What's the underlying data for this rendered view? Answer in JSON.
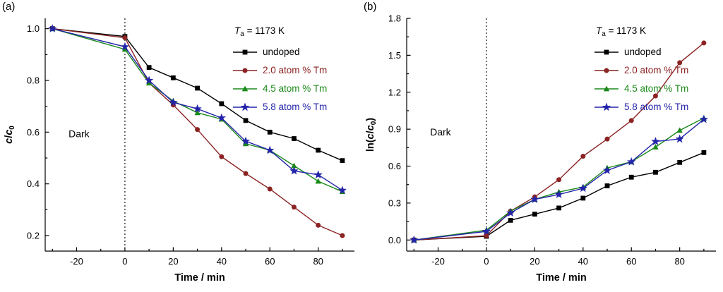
{
  "figure": {
    "panel_labels": [
      "(a)",
      "(b)"
    ]
  },
  "chart_data": [
    {
      "type": "line",
      "panel": "a",
      "xlabel": "Time / min",
      "ylabel_parts": [
        {
          "text": "c",
          "italic": true
        },
        {
          "text": "/",
          "italic": false
        },
        {
          "text": "c",
          "italic": true
        },
        {
          "text": "0",
          "sub": true
        }
      ],
      "annotation_parts": [
        {
          "text": "T",
          "italic": true
        },
        {
          "text": "a",
          "sub": true
        },
        {
          "text": " = 1173 K",
          "italic": false
        }
      ],
      "region_label": {
        "text": "Dark",
        "x": -19,
        "y": 0.58
      },
      "xlim": [
        -33,
        95
      ],
      "ylim": [
        0.14,
        1.04
      ],
      "xticks": [
        -20,
        0,
        20,
        40,
        60,
        80
      ],
      "xminor_ticks": [
        -30,
        -10,
        10,
        30,
        50,
        70,
        90
      ],
      "yticks": [
        0.2,
        0.4,
        0.6,
        0.8,
        1.0
      ],
      "yminor_ticks": [
        0.3,
        0.5,
        0.7,
        0.9
      ],
      "ytick_decimals": 1,
      "dashed_vline_x": 0,
      "grid": false,
      "legend_position": "top-right",
      "x": [
        -30,
        0,
        10,
        20,
        30,
        40,
        50,
        60,
        70,
        80,
        90
      ],
      "series": [
        {
          "name": "undoped",
          "marker": "square",
          "color": "#000000",
          "values": [
            1.0,
            0.97,
            0.85,
            0.81,
            0.77,
            0.71,
            0.645,
            0.6,
            0.575,
            0.53,
            0.49
          ]
        },
        {
          "name": "2.0 atom % Tm",
          "marker": "circle",
          "color": "#8b2323",
          "values": [
            1.0,
            0.965,
            0.79,
            0.705,
            0.61,
            0.505,
            0.44,
            0.38,
            0.31,
            0.24,
            0.2
          ]
        },
        {
          "name": "4.5 atom % Tm",
          "marker": "triangle",
          "color": "#1a8a1a",
          "values": [
            1.0,
            0.92,
            0.79,
            0.72,
            0.675,
            0.65,
            0.555,
            0.53,
            0.47,
            0.41,
            0.37
          ]
        },
        {
          "name": "5.8 atom % Tm",
          "marker": "star",
          "color": "#2424aa",
          "values": [
            1.0,
            0.93,
            0.8,
            0.715,
            0.69,
            0.655,
            0.565,
            0.53,
            0.45,
            0.435,
            0.375
          ]
        }
      ]
    },
    {
      "type": "line",
      "panel": "b",
      "xlabel": "Time / min",
      "ylabel_parts": [
        {
          "text": "ln(",
          "italic": false
        },
        {
          "text": "c",
          "italic": true
        },
        {
          "text": "/",
          "italic": false
        },
        {
          "text": "c",
          "italic": true
        },
        {
          "text": "0",
          "sub": true
        },
        {
          "text": ")",
          "italic": false
        }
      ],
      "annotation_parts": [
        {
          "text": "T",
          "italic": true
        },
        {
          "text": "a",
          "sub": true
        },
        {
          "text": " = 1173 K",
          "italic": false
        }
      ],
      "region_label": {
        "text": "Dark",
        "x": -19,
        "y": 0.85
      },
      "xlim": [
        -33,
        95
      ],
      "ylim": [
        -0.09,
        1.8
      ],
      "xticks": [
        -20,
        0,
        20,
        40,
        60,
        80
      ],
      "xminor_ticks": [
        -30,
        -10,
        10,
        30,
        50,
        70,
        90
      ],
      "yticks": [
        0.0,
        0.3,
        0.6,
        0.9,
        1.2,
        1.5,
        1.8
      ],
      "yminor_ticks": [
        0.15,
        0.45,
        0.75,
        1.05,
        1.35,
        1.65
      ],
      "ytick_decimals": 1,
      "dashed_vline_x": 0,
      "grid": false,
      "legend_position": "top-right",
      "x": [
        -30,
        0,
        10,
        20,
        30,
        40,
        50,
        60,
        70,
        80,
        90
      ],
      "series": [
        {
          "name": "undoped",
          "marker": "square",
          "color": "#000000",
          "values": [
            0.0,
            0.03,
            0.16,
            0.21,
            0.26,
            0.34,
            0.44,
            0.51,
            0.55,
            0.63,
            0.71
          ]
        },
        {
          "name": "2.0 atom % Tm",
          "marker": "circle",
          "color": "#8b2323",
          "values": [
            0.0,
            0.035,
            0.235,
            0.35,
            0.49,
            0.68,
            0.82,
            0.97,
            1.17,
            1.44,
            1.6
          ]
        },
        {
          "name": "4.5 atom % Tm",
          "marker": "triangle",
          "color": "#1a8a1a",
          "values": [
            0.0,
            0.08,
            0.235,
            0.33,
            0.39,
            0.43,
            0.585,
            0.635,
            0.755,
            0.89,
            0.99
          ]
        },
        {
          "name": "5.8 atom % Tm",
          "marker": "star",
          "color": "#2424aa",
          "values": [
            0.0,
            0.07,
            0.22,
            0.33,
            0.37,
            0.42,
            0.565,
            0.635,
            0.8,
            0.82,
            0.98
          ]
        }
      ]
    }
  ]
}
